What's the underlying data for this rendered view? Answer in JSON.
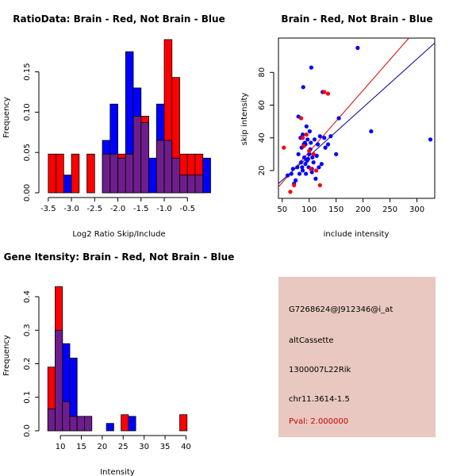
{
  "colors": {
    "red": "#ff0000",
    "blue": "#0000ff",
    "purple": "#6e1e8c",
    "purple_dark": "#7a0a6e",
    "info_bg": "#e8c8c0",
    "pval": "#cc0000",
    "fit_red": "#dd0000",
    "fit_blue": "#000099"
  },
  "chart_data": [
    {
      "id": "ratio",
      "type": "bar",
      "subtype": "overlapping-histogram",
      "title": "RatioData: Brain - Red, Not Brain - Blue",
      "xlabel": "Log2 Ratio Skip/Include",
      "ylabel": "Frequency",
      "xlim": [
        -3.6,
        -0.35
      ],
      "ylim": [
        0,
        0.185
      ],
      "xticks": [
        -3.5,
        -3.0,
        -2.5,
        -2.0,
        -1.5,
        -1.0,
        -0.5
      ],
      "xtick_labels": [
        "-3.5",
        "-3.0",
        "-2.5",
        "-2.0",
        "-1.5",
        "-1.0",
        "-0.5"
      ],
      "yticks": [
        0.0,
        0.05,
        0.1,
        0.15
      ],
      "ytick_labels": [
        "0.00",
        "0.05",
        "0.10",
        "0.15"
      ],
      "bin_start": -3.5,
      "bin_width": 0.1667,
      "series": [
        {
          "name": "Brain",
          "color": "red",
          "values": [
            0.048,
            0.048,
            0,
            0.048,
            0,
            0.048,
            0,
            0.048,
            0.048,
            0.048,
            0.048,
            0.095,
            0.095,
            0,
            0.065,
            0.19,
            0.143,
            0.048,
            0.048,
            0.048,
            0
          ]
        },
        {
          "name": "Not Brain",
          "color": "blue",
          "values": [
            0,
            0,
            0.022,
            0,
            0,
            0,
            0,
            0.065,
            0.11,
            0.043,
            0.175,
            0.13,
            0.087,
            0.043,
            0.11,
            0.065,
            0.043,
            0.022,
            0.022,
            0.022,
            0.043
          ]
        }
      ]
    },
    {
      "id": "scatter",
      "type": "scatter",
      "title": "Brain - Red, Not Brain - Blue",
      "xlabel": "include intensity",
      "ylabel": "skip intensity",
      "xlim": [
        43,
        333
      ],
      "ylim": [
        3,
        101
      ],
      "xticks": [
        50,
        100,
        150,
        200,
        250,
        300
      ],
      "xtick_labels": [
        "50",
        "100",
        "150",
        "200",
        "250",
        "300"
      ],
      "yticks": [
        20,
        40,
        60,
        80
      ],
      "ytick_labels": [
        "20",
        "40",
        "60",
        "80"
      ],
      "series": [
        {
          "name": "Not Brain",
          "color": "blue",
          "points": [
            [
              60,
              17
            ],
            [
              67,
              18
            ],
            [
              70,
              21
            ],
            [
              72,
              12
            ],
            [
              75,
              14
            ],
            [
              78,
              22
            ],
            [
              80,
              30
            ],
            [
              82,
              18
            ],
            [
              84,
              40
            ],
            [
              85,
              25
            ],
            [
              86,
              34
            ],
            [
              87,
              22
            ],
            [
              88,
              20
            ],
            [
              89,
              71
            ],
            [
              90,
              36
            ],
            [
              91,
              28
            ],
            [
              92,
              37
            ],
            [
              93,
              24
            ],
            [
              94,
              18
            ],
            [
              95,
              47
            ],
            [
              96,
              26
            ],
            [
              97,
              39
            ],
            [
              98,
              27
            ],
            [
              99,
              22
            ],
            [
              100,
              30
            ],
            [
              101,
              44
            ],
            [
              102,
              33
            ],
            [
              103,
              37
            ],
            [
              104,
              83
            ],
            [
              105,
              19
            ],
            [
              106,
              28
            ],
            [
              108,
              25
            ],
            [
              110,
              39
            ],
            [
              112,
              15
            ],
            [
              114,
              29
            ],
            [
              116,
              36
            ],
            [
              118,
              22
            ],
            [
              120,
              41
            ],
            [
              123,
              24
            ],
            [
              125,
              68
            ],
            [
              128,
              40
            ],
            [
              130,
              34
            ],
            [
              135,
              36
            ],
            [
              140,
              41
            ],
            [
              150,
              30
            ],
            [
              155,
              52
            ],
            [
              190,
              95
            ],
            [
              215,
              44
            ],
            [
              325,
              39
            ],
            [
              80,
              53
            ],
            [
              88,
              42
            ],
            [
              105,
              21
            ],
            [
              93,
              36
            ]
          ]
        },
        {
          "name": "Brain",
          "color": "red",
          "points": [
            [
              53,
              34
            ],
            [
              65,
              7
            ],
            [
              72,
              11
            ],
            [
              85,
              52
            ],
            [
              88,
              40
            ],
            [
              90,
              35
            ],
            [
              95,
              42
            ],
            [
              100,
              32
            ],
            [
              103,
              21
            ],
            [
              108,
              30
            ],
            [
              113,
              20
            ],
            [
              120,
              11
            ],
            [
              128,
              68
            ],
            [
              135,
              67
            ]
          ]
        }
      ],
      "fit_lines": [
        {
          "name": "Brain fit",
          "color": "fit_red",
          "from": [
            43,
            10
          ],
          "to": [
            285,
            101
          ]
        },
        {
          "name": "Not Brain fit",
          "color": "fit_blue",
          "from": [
            43,
            12
          ],
          "to": [
            333,
            98
          ]
        }
      ]
    },
    {
      "id": "intensity",
      "type": "bar",
      "subtype": "overlapping-histogram",
      "title": "Gene Itensity: Brain - Red, Not Brain - Blue",
      "xlabel": "Intensity",
      "ylabel": "Frequency",
      "xlim": [
        6,
        42
      ],
      "ylim": [
        0,
        0.445
      ],
      "xticks": [
        10,
        15,
        20,
        25,
        30,
        35,
        40
      ],
      "xtick_labels": [
        "10",
        "15",
        "20",
        "25",
        "30",
        "35",
        "40"
      ],
      "yticks": [
        0.0,
        0.1,
        0.2,
        0.3,
        0.4
      ],
      "ytick_labels": [
        "0.0",
        "0.1",
        "0.2",
        "0.3",
        "0.4"
      ],
      "bin_start": 7,
      "bin_width": 1.75,
      "series": [
        {
          "name": "Brain",
          "color": "red",
          "values": [
            0.19,
            0.43,
            0.087,
            0.043,
            0.043,
            0.043,
            0,
            0,
            0,
            0,
            0.048,
            0,
            0,
            0,
            0,
            0,
            0,
            0,
            0.048
          ]
        },
        {
          "name": "Not Brain",
          "color": "blue",
          "values": [
            0.065,
            0.3,
            0.26,
            0.217,
            0.043,
            0.043,
            0,
            0,
            0.022,
            0,
            0,
            0.043,
            0,
            0,
            0,
            0,
            0,
            0,
            0
          ]
        }
      ]
    }
  ],
  "info_panel": {
    "probe": "G7268624@J912346@i_at",
    "event_type": "altCassette",
    "gene": "1300007L22Rik",
    "location": "chr11.3614-1.5",
    "pval": "Pval: 2.000000"
  }
}
